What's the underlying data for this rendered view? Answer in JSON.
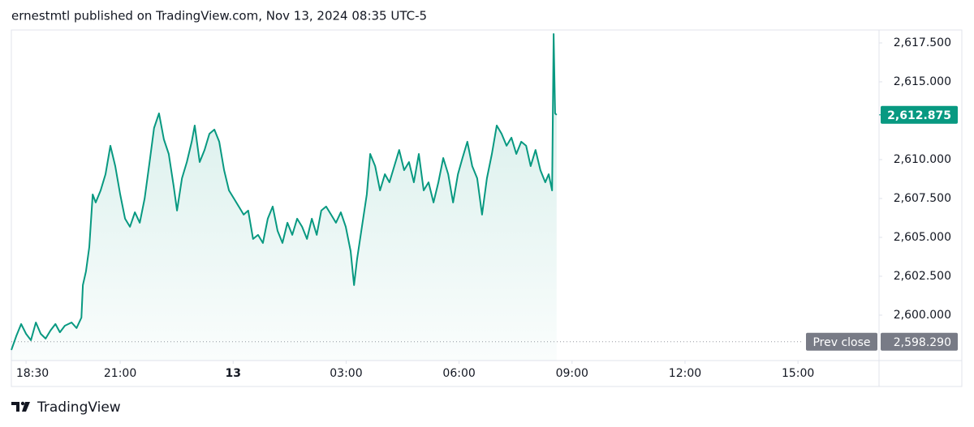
{
  "header": "ernestmtl published on TradingView.com, Nov 13, 2024 08:35 UTC-5",
  "chart_data": {
    "type": "area",
    "x": [
      18.11,
      18.24,
      18.37,
      18.5,
      18.63,
      18.76,
      18.89,
      19.02,
      19.15,
      19.28,
      19.4,
      19.53,
      19.71,
      19.84,
      19.97,
      20.01,
      20.09,
      20.18,
      20.27,
      20.35,
      20.48,
      20.61,
      20.74,
      20.87,
      21.0,
      21.13,
      21.26,
      21.39,
      21.52,
      21.65,
      21.78,
      21.9,
      22.03,
      22.16,
      22.29,
      22.42,
      22.51,
      22.64,
      22.77,
      22.9,
      22.98,
      23.11,
      23.24,
      23.37,
      23.5,
      23.63,
      23.76,
      23.89,
      24.02,
      24.15,
      24.28,
      24.4,
      24.53,
      24.66,
      24.79,
      24.92,
      25.05,
      25.18,
      25.31,
      25.44,
      25.57,
      25.7,
      25.83,
      25.96,
      26.09,
      26.22,
      26.34,
      26.47,
      26.6,
      26.73,
      26.86,
      26.99,
      27.12,
      27.21,
      27.29,
      27.42,
      27.55,
      27.64,
      27.77,
      27.9,
      28.03,
      28.15,
      28.28,
      28.41,
      28.54,
      28.67,
      28.8,
      28.93,
      29.06,
      29.19,
      29.32,
      29.45,
      29.58,
      29.71,
      29.84,
      29.97,
      30.09,
      30.22,
      30.35,
      30.48,
      30.61,
      30.74,
      30.87,
      31.0,
      31.13,
      31.26,
      31.39,
      31.52,
      31.65,
      31.78,
      31.9,
      32.03,
      32.16,
      32.29,
      32.38,
      32.47,
      32.51,
      32.55,
      32.59
    ],
    "series": [
      {
        "color": "#089981",
        "values": [
          2597.76,
          2598.65,
          2599.43,
          2598.8,
          2598.39,
          2599.53,
          2598.8,
          2598.49,
          2599.01,
          2599.43,
          2598.9,
          2599.32,
          2599.53,
          2599.17,
          2599.84,
          2601.93,
          2602.81,
          2604.38,
          2607.76,
          2607.24,
          2608.02,
          2609.06,
          2610.89,
          2609.58,
          2607.76,
          2606.2,
          2605.68,
          2606.61,
          2605.94,
          2607.5,
          2609.84,
          2612.03,
          2612.97,
          2611.3,
          2610.36,
          2608.28,
          2606.72,
          2608.8,
          2609.84,
          2611.15,
          2612.19,
          2609.84,
          2610.62,
          2611.66,
          2611.93,
          2611.15,
          2609.32,
          2608.02,
          2607.5,
          2606.98,
          2606.46,
          2606.72,
          2604.9,
          2605.16,
          2604.64,
          2606.2,
          2606.98,
          2605.42,
          2604.64,
          2605.94,
          2605.16,
          2606.2,
          2605.68,
          2604.9,
          2606.2,
          2605.16,
          2606.72,
          2606.98,
          2606.46,
          2605.94,
          2606.61,
          2605.68,
          2604.11,
          2601.93,
          2603.59,
          2605.68,
          2607.76,
          2610.36,
          2609.58,
          2608.02,
          2609.06,
          2608.54,
          2609.58,
          2610.62,
          2609.32,
          2609.84,
          2608.54,
          2610.36,
          2608.02,
          2608.54,
          2607.24,
          2608.54,
          2610.1,
          2609.06,
          2607.24,
          2609.06,
          2610.1,
          2611.15,
          2609.58,
          2608.8,
          2606.46,
          2608.8,
          2610.36,
          2612.19,
          2611.66,
          2610.89,
          2611.41,
          2610.36,
          2611.15,
          2610.89,
          2609.58,
          2610.62,
          2609.32,
          2608.54,
          2609.06,
          2608.02,
          2618.07,
          2612.97,
          2612.875
        ]
      }
    ],
    "xlim": [
      18.11,
      40.98
    ],
    "ylim": [
      2597.08,
      2618.28
    ],
    "xticks": [
      {
        "value": 18.5,
        "label": "18:30"
      },
      {
        "value": 21,
        "label": "21:00"
      },
      {
        "value": 24,
        "label": "13"
      },
      {
        "value": 27,
        "label": "03:00"
      },
      {
        "value": 30,
        "label": "06:00"
      },
      {
        "value": 33,
        "label": "09:00"
      },
      {
        "value": 36,
        "label": "12:00"
      },
      {
        "value": 39,
        "label": "15:00"
      }
    ],
    "yticks": [
      {
        "value": 2600,
        "label": "2,600.000"
      },
      {
        "value": 2602.5,
        "label": "2,602.500"
      },
      {
        "value": 2605,
        "label": "2,605.000"
      },
      {
        "value": 2607.5,
        "label": "2,607.500"
      },
      {
        "value": 2610,
        "label": "2,610.000"
      },
      {
        "value": 2615,
        "label": "2,615.000"
      },
      {
        "value": 2617.5,
        "label": "2,617.500"
      }
    ],
    "last_price": {
      "value": 2612.875,
      "label": "2,612.875"
    },
    "prev_close": {
      "name": "Prev close",
      "value": 2598.29,
      "label": "2,598.290"
    }
  },
  "footer": "TradingView"
}
